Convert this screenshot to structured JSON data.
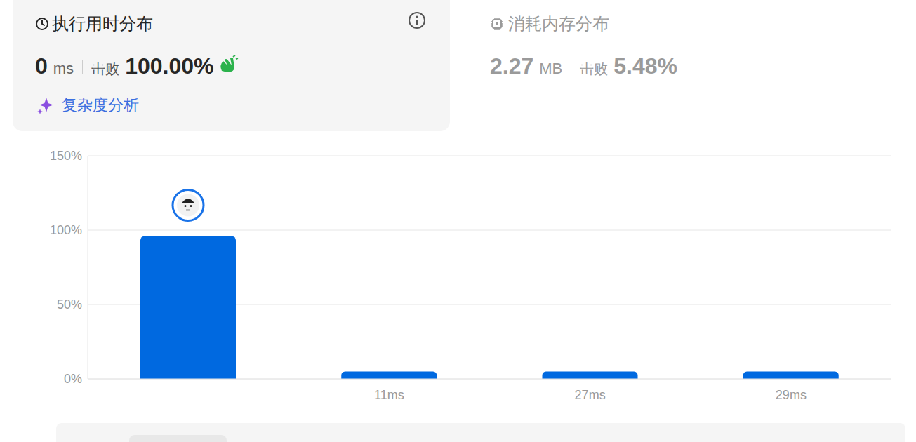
{
  "runtime": {
    "title": "执行用时分布",
    "value": "0",
    "unit": "ms",
    "beat_label": "击败",
    "beat": "100.00%",
    "link": "复杂度分析"
  },
  "memory": {
    "title": "消耗内存分布",
    "value": "2.27",
    "unit": "MB",
    "beat_label": "击败",
    "beat": "5.48%"
  },
  "chart_data": {
    "type": "bar",
    "categories": [
      null,
      "11ms",
      "27ms",
      "29ms"
    ],
    "values": [
      96,
      5,
      5,
      5
    ],
    "color": "#0069e0",
    "ylim": [
      0,
      150
    ],
    "yticks": [
      {
        "value": 0,
        "label": "0%"
      },
      {
        "value": 50,
        "label": "50%"
      },
      {
        "value": 100,
        "label": "100%"
      },
      {
        "value": 150,
        "label": "150%"
      }
    ],
    "grid": true
  }
}
